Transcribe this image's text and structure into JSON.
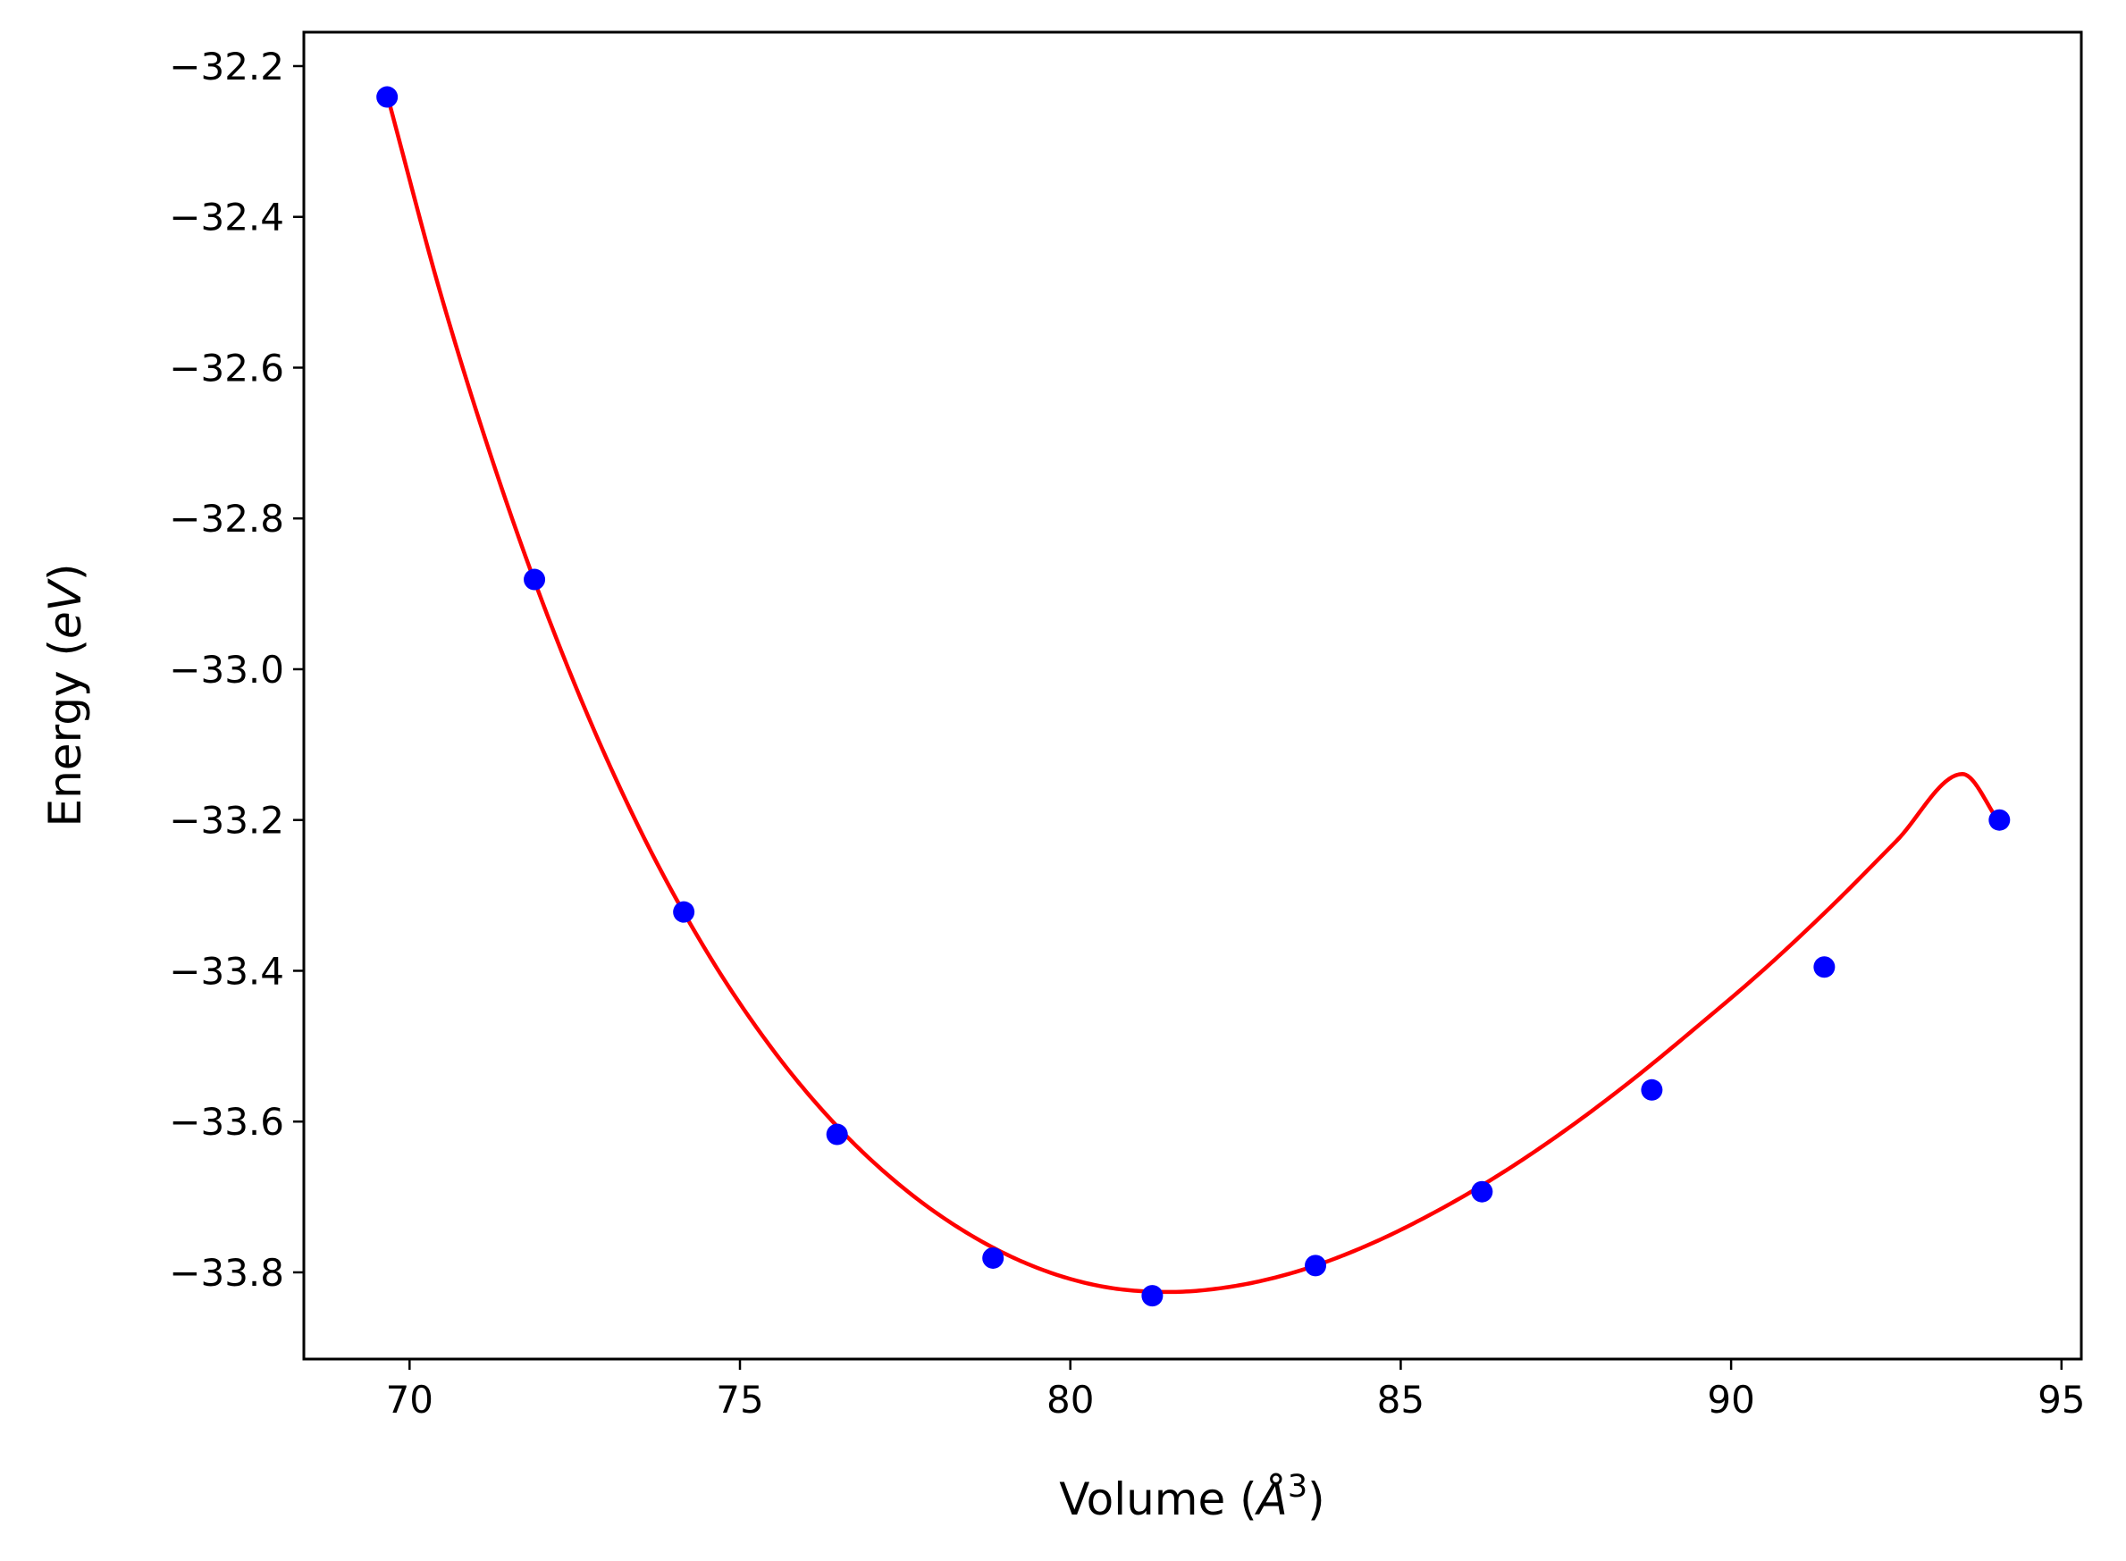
{
  "chart_data": {
    "type": "scatter",
    "title": "",
    "xlabel": {
      "main": "Volume (",
      "symbol": "Å",
      "sup": "3",
      "close": ")"
    },
    "ylabel": {
      "main": "Energy (",
      "unit": "eV",
      "close": ")"
    },
    "xlim": [
      68.4,
      95.3
    ],
    "ylim": [
      -33.915,
      -32.155
    ],
    "xticks": [
      70,
      75,
      80,
      85,
      90,
      95
    ],
    "xtick_labels": [
      "70",
      "75",
      "80",
      "85",
      "90",
      "95"
    ],
    "yticks": [
      -33.8,
      -33.6,
      -33.4,
      -33.2,
      -33.0,
      -32.8,
      -32.6,
      -32.4,
      -32.2
    ],
    "ytick_labels": [
      "−33.8",
      "−33.6",
      "−33.4",
      "−33.2",
      "−33.0",
      "−32.8",
      "−32.6",
      "−32.4",
      "−32.2"
    ],
    "grid": false,
    "legend": "none",
    "series": [
      {
        "kind": "points",
        "color": "#0000ff",
        "x": [
          69.66,
          71.89,
          74.15,
          76.47,
          78.83,
          81.24,
          83.71,
          86.23,
          88.8,
          91.41,
          94.06
        ],
        "y": [
          -32.241,
          -32.881,
          -33.322,
          -33.617,
          -33.781,
          -33.831,
          -33.791,
          -33.693,
          -33.558,
          -33.395,
          -33.2
        ]
      },
      {
        "kind": "fit-line",
        "color": "#ff0000",
        "x": [
          69.66,
          70.5,
          71.5,
          72.5,
          73.5,
          74.5,
          75.5,
          76.5,
          77.5,
          78.5,
          79.5,
          80.5,
          81.5,
          82.5,
          83.5,
          84.5,
          85.5,
          86.5,
          87.5,
          88.5,
          89.5,
          90.5,
          91.5,
          92.5,
          93.5,
          94.06
        ],
        "y": [
          -32.238,
          -32.511,
          -32.787,
          -33.02,
          -33.215,
          -33.375,
          -33.505,
          -33.609,
          -33.69,
          -33.751,
          -33.794,
          -33.819,
          -33.826,
          -33.818,
          -33.797,
          -33.764,
          -33.721,
          -33.67,
          -33.611,
          -33.545,
          -33.473,
          -33.398,
          -33.316,
          -33.228,
          -33.139,
          -33.203
        ]
      }
    ]
  }
}
